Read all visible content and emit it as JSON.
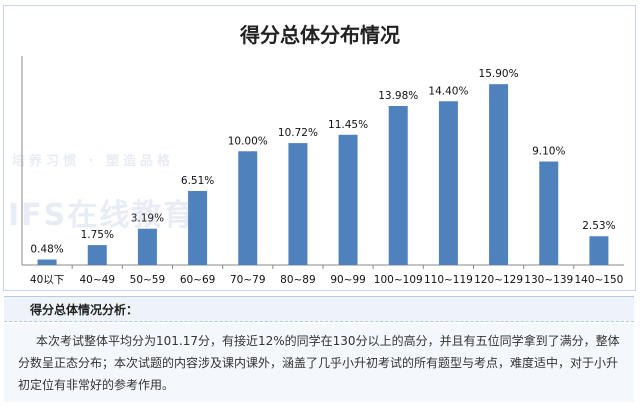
{
  "chart_data": {
    "type": "bar",
    "title": "得分总体分布情况",
    "categories": [
      "40以下",
      "40~49",
      "50~59",
      "60~69",
      "70~79",
      "80~89",
      "90~99",
      "100~109",
      "110~119",
      "120~129",
      "130~139",
      "140~150"
    ],
    "values": [
      0.48,
      1.75,
      3.19,
      6.51,
      10.0,
      10.72,
      11.45,
      13.98,
      14.4,
      15.9,
      9.1,
      2.53
    ],
    "labels": [
      "0.48%",
      "1.75%",
      "3.19%",
      "6.51%",
      "10.00%",
      "10.72%",
      "11.45%",
      "13.98%",
      "14.40%",
      "15.90%",
      "9.10%",
      "2.53%"
    ],
    "ylim": [
      0,
      17.5
    ],
    "xlabel": "",
    "ylabel": "",
    "grid": false,
    "bar_color": "#4f81bd"
  },
  "analysis": {
    "title": "得分总体情况分析：",
    "text": "本次考试整体平均分为101.17分，有接近12%的同学在130分以上的高分，并且有五位同学拿到了满分，整体分数呈正态分布；本次试题的内容涉及课内课外，涵盖了几乎小升初考试的所有题型与考点，难度适中，对于小升初定位有非常好的参考作用。"
  },
  "watermark": {
    "brand": "IFS在线教育",
    "slogan": "培养习惯 · 塑造品格"
  }
}
